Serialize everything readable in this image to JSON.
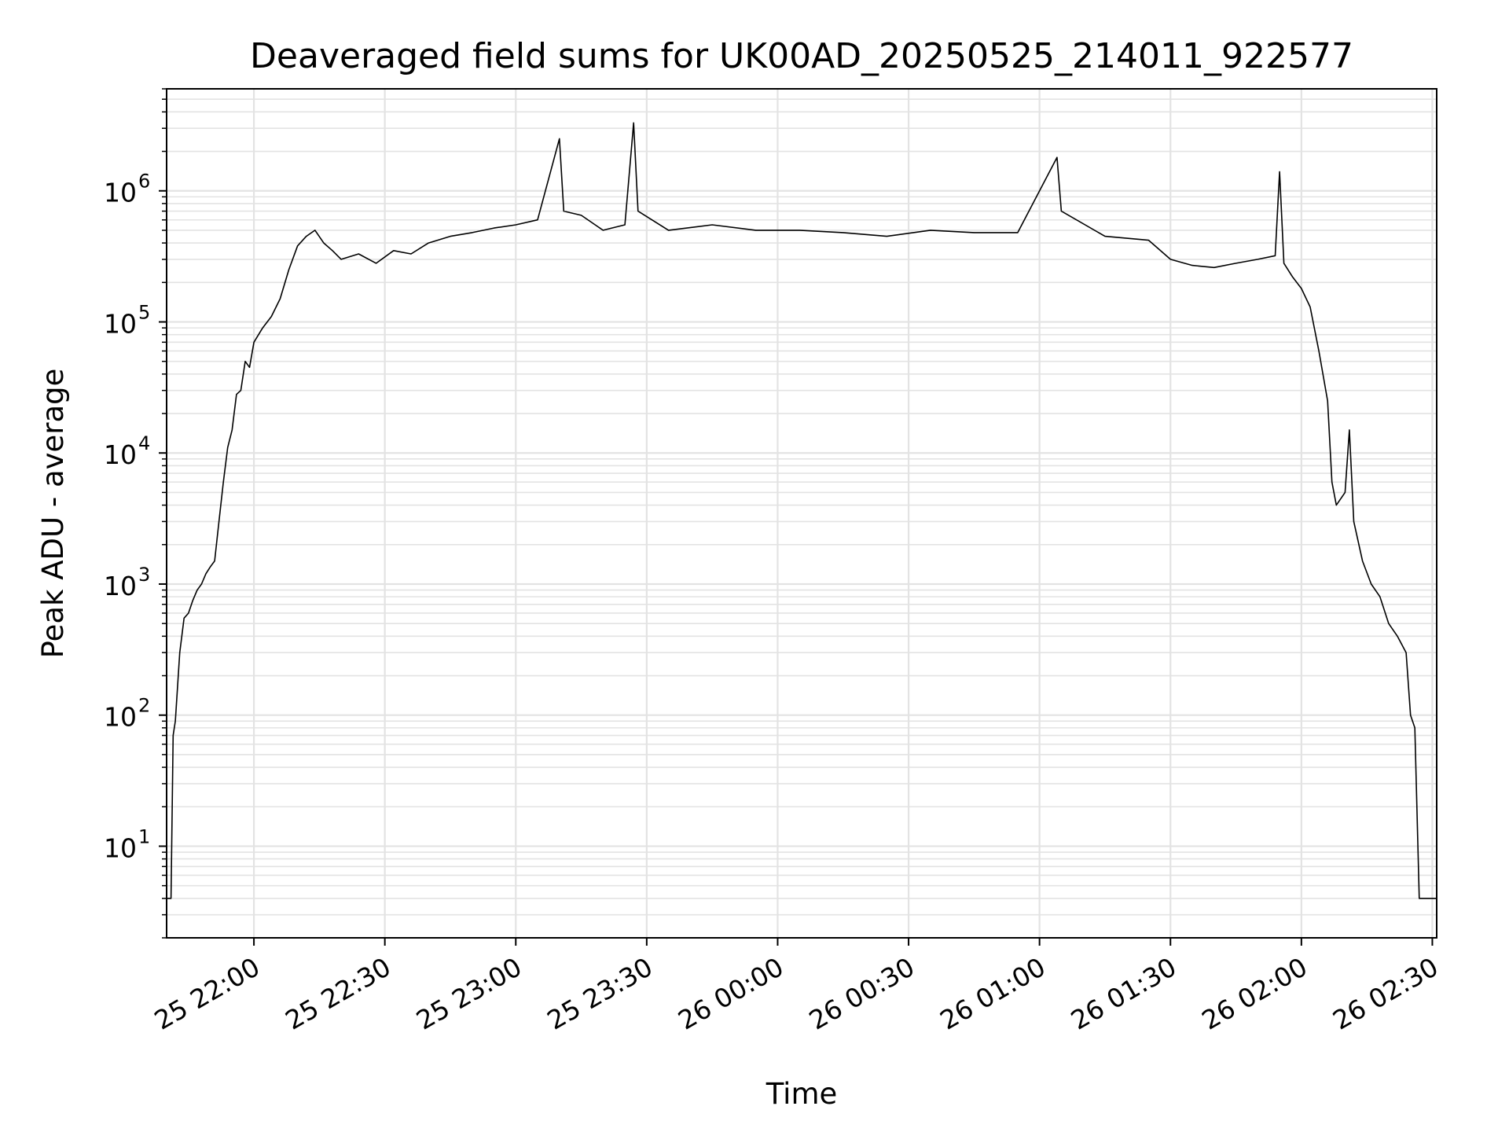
{
  "chart_data": {
    "type": "line",
    "title": "Deaveraged field sums for UK00AD_20250525_214011_922577",
    "xlabel": "Time",
    "ylabel": "Peak ADU - average",
    "y_scale": "log",
    "ylim": [
      2,
      6000000
    ],
    "xlim": [
      "2025-05-25 21:40",
      "2025-05-26 02:31"
    ],
    "x_ticks": [
      {
        "t": "2025-05-25 22:00",
        "label": "25 22:00"
      },
      {
        "t": "2025-05-25 22:30",
        "label": "25 22:30"
      },
      {
        "t": "2025-05-25 23:00",
        "label": "25 23:00"
      },
      {
        "t": "2025-05-25 23:30",
        "label": "25 23:30"
      },
      {
        "t": "2025-05-26 00:00",
        "label": "26 00:00"
      },
      {
        "t": "2025-05-26 00:30",
        "label": "26 00:30"
      },
      {
        "t": "2025-05-26 01:00",
        "label": "26 01:00"
      },
      {
        "t": "2025-05-26 01:30",
        "label": "26 01:30"
      },
      {
        "t": "2025-05-26 02:00",
        "label": "26 02:00"
      },
      {
        "t": "2025-05-26 02:30",
        "label": "26 02:30"
      }
    ],
    "y_ticks": [
      {
        "value": 10,
        "base": "10",
        "exp": "1"
      },
      {
        "value": 100,
        "base": "10",
        "exp": "2"
      },
      {
        "value": 1000,
        "base": "10",
        "exp": "3"
      },
      {
        "value": 10000,
        "base": "10",
        "exp": "4"
      },
      {
        "value": 100000,
        "base": "10",
        "exp": "5"
      },
      {
        "value": 1000000,
        "base": "10",
        "exp": "6"
      }
    ],
    "grid": true,
    "line_color": "#000000",
    "series": [
      {
        "values": [
          [
            "2025-05-25 21:40",
            4
          ],
          [
            "2025-05-25 21:41",
            4
          ],
          [
            "2025-05-25 21:41:30",
            70
          ],
          [
            "2025-05-25 21:42",
            90
          ],
          [
            "2025-05-25 21:43",
            300
          ],
          [
            "2025-05-25 21:44",
            550
          ],
          [
            "2025-05-25 21:45",
            600
          ],
          [
            "2025-05-25 21:46",
            750
          ],
          [
            "2025-05-25 21:47",
            900
          ],
          [
            "2025-05-25 21:48",
            1000
          ],
          [
            "2025-05-25 21:49",
            1200
          ],
          [
            "2025-05-25 21:50",
            1350
          ],
          [
            "2025-05-25 21:51",
            1500
          ],
          [
            "2025-05-25 21:52",
            3000
          ],
          [
            "2025-05-25 21:53",
            6000
          ],
          [
            "2025-05-25 21:54",
            11000
          ],
          [
            "2025-05-25 21:55",
            15000
          ],
          [
            "2025-05-25 21:56",
            28000
          ],
          [
            "2025-05-25 21:57",
            30000
          ],
          [
            "2025-05-25 21:58",
            50000
          ],
          [
            "2025-05-25 21:59",
            45000
          ],
          [
            "2025-05-25 22:00",
            70000
          ],
          [
            "2025-05-25 22:02",
            90000
          ],
          [
            "2025-05-25 22:04",
            110000
          ],
          [
            "2025-05-25 22:06",
            150000
          ],
          [
            "2025-05-25 22:08",
            250000
          ],
          [
            "2025-05-25 22:10",
            380000
          ],
          [
            "2025-05-25 22:12",
            450000
          ],
          [
            "2025-05-25 22:14",
            500000
          ],
          [
            "2025-05-25 22:16",
            400000
          ],
          [
            "2025-05-25 22:18",
            350000
          ],
          [
            "2025-05-25 22:20",
            300000
          ],
          [
            "2025-05-25 22:24",
            330000
          ],
          [
            "2025-05-25 22:28",
            280000
          ],
          [
            "2025-05-25 22:32",
            350000
          ],
          [
            "2025-05-25 22:36",
            330000
          ],
          [
            "2025-05-25 22:40",
            400000
          ],
          [
            "2025-05-25 22:45",
            450000
          ],
          [
            "2025-05-25 22:50",
            480000
          ],
          [
            "2025-05-25 22:55",
            520000
          ],
          [
            "2025-05-25 23:00",
            550000
          ],
          [
            "2025-05-25 23:05",
            600000
          ],
          [
            "2025-05-25 23:10",
            2500000
          ],
          [
            "2025-05-25 23:11",
            700000
          ],
          [
            "2025-05-25 23:15",
            650000
          ],
          [
            "2025-05-25 23:20",
            500000
          ],
          [
            "2025-05-25 23:25",
            550000
          ],
          [
            "2025-05-25 23:27",
            3300000
          ],
          [
            "2025-05-25 23:28",
            700000
          ],
          [
            "2025-05-25 23:35",
            500000
          ],
          [
            "2025-05-25 23:45",
            550000
          ],
          [
            "2025-05-25 23:55",
            500000
          ],
          [
            "2025-05-26 00:05",
            500000
          ],
          [
            "2025-05-26 00:15",
            480000
          ],
          [
            "2025-05-26 00:25",
            450000
          ],
          [
            "2025-05-26 00:35",
            500000
          ],
          [
            "2025-05-26 00:45",
            480000
          ],
          [
            "2025-05-26 00:55",
            480000
          ],
          [
            "2025-05-26 01:04",
            1800000
          ],
          [
            "2025-05-26 01:05",
            700000
          ],
          [
            "2025-05-26 01:15",
            450000
          ],
          [
            "2025-05-26 01:25",
            420000
          ],
          [
            "2025-05-26 01:30",
            300000
          ],
          [
            "2025-05-26 01:35",
            270000
          ],
          [
            "2025-05-26 01:40",
            260000
          ],
          [
            "2025-05-26 01:45",
            280000
          ],
          [
            "2025-05-26 01:50",
            300000
          ],
          [
            "2025-05-26 01:54",
            320000
          ],
          [
            "2025-05-26 01:55",
            1400000
          ],
          [
            "2025-05-26 01:56",
            280000
          ],
          [
            "2025-05-26 01:58",
            220000
          ],
          [
            "2025-05-26 02:00",
            180000
          ],
          [
            "2025-05-26 02:02",
            130000
          ],
          [
            "2025-05-26 02:04",
            60000
          ],
          [
            "2025-05-26 02:06",
            25000
          ],
          [
            "2025-05-26 02:07",
            6000
          ],
          [
            "2025-05-26 02:08",
            4000
          ],
          [
            "2025-05-26 02:10",
            5000
          ],
          [
            "2025-05-26 02:11",
            15000
          ],
          [
            "2025-05-26 02:12",
            3000
          ],
          [
            "2025-05-26 02:14",
            1500
          ],
          [
            "2025-05-26 02:16",
            1000
          ],
          [
            "2025-05-26 02:18",
            800
          ],
          [
            "2025-05-26 02:20",
            500
          ],
          [
            "2025-05-26 02:22",
            400
          ],
          [
            "2025-05-26 02:24",
            300
          ],
          [
            "2025-05-26 02:25",
            100
          ],
          [
            "2025-05-26 02:26",
            80
          ],
          [
            "2025-05-26 02:27",
            4
          ],
          [
            "2025-05-26 02:31",
            4
          ]
        ]
      }
    ]
  }
}
